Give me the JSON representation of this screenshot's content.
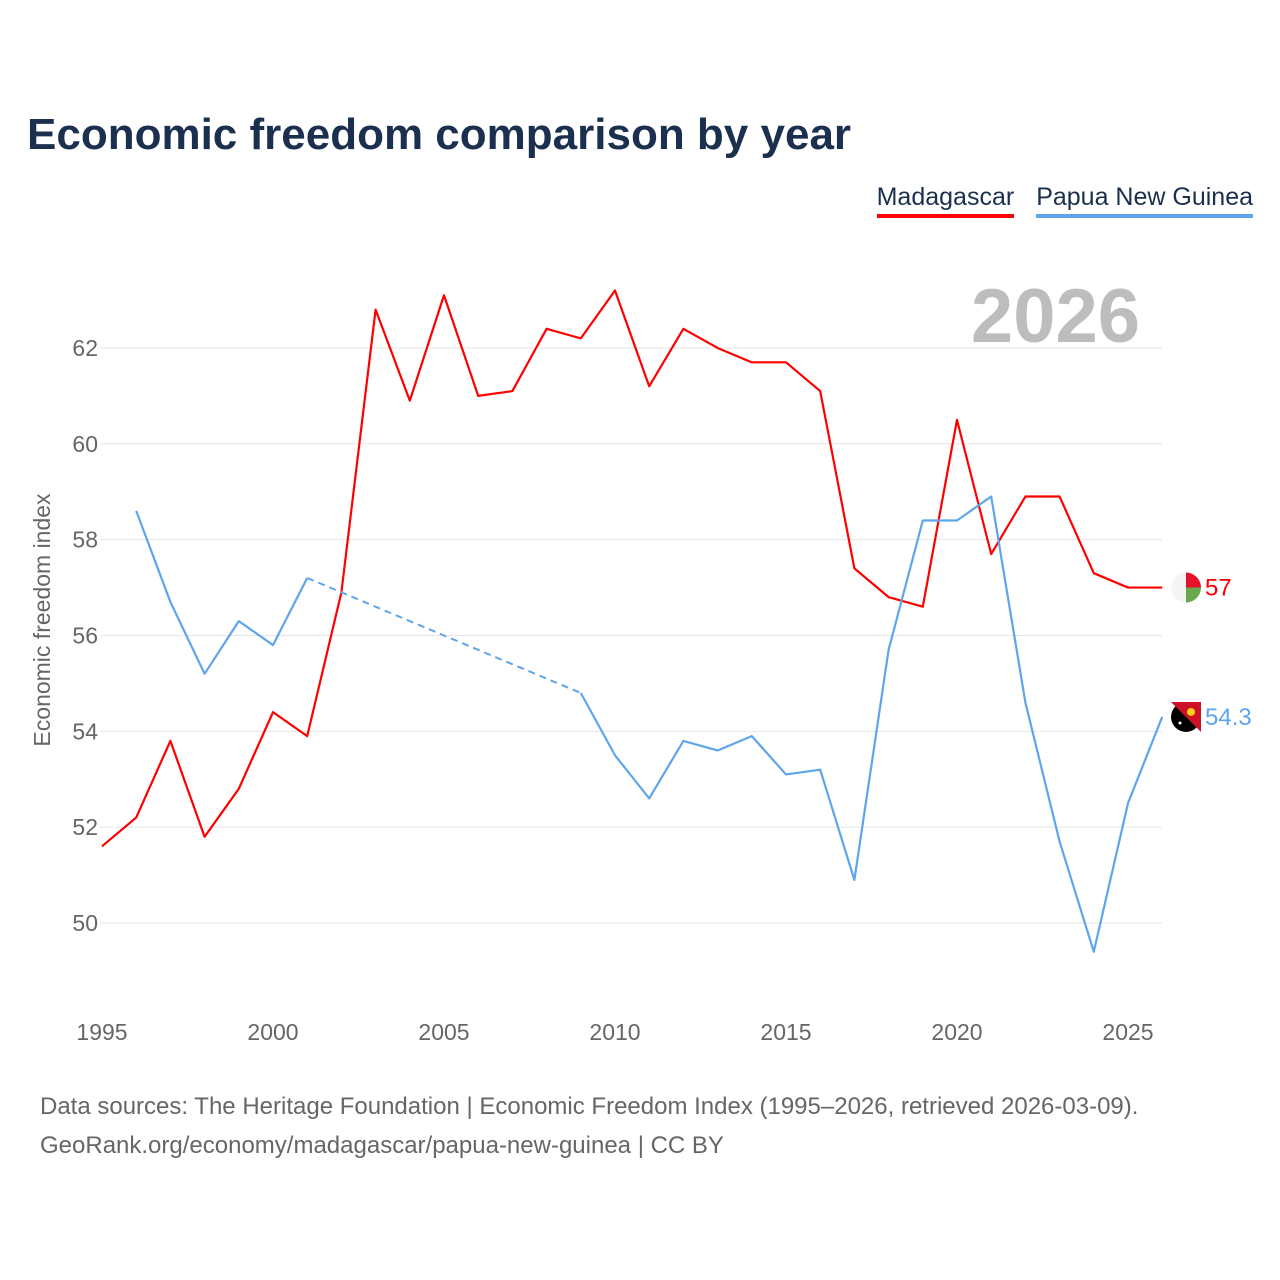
{
  "chart_data": {
    "type": "line",
    "title": "Economic freedom comparison by year",
    "ylabel": "Economic freedom index",
    "xlabel": "",
    "xlim": [
      1995,
      2026
    ],
    "ylim": [
      48.5,
      63.5
    ],
    "xticks": [
      1995,
      2000,
      2005,
      2010,
      2015,
      2020,
      2025
    ],
    "yticks": [
      50,
      52,
      54,
      56,
      58,
      60,
      62
    ],
    "grid": true,
    "legend_position": "top-right",
    "current_year_label": "2026",
    "series": [
      {
        "name": "Madagascar",
        "color": "#ff0000",
        "end_label": "57",
        "x": [
          1995,
          1996,
          1997,
          1998,
          1999,
          2000,
          2001,
          2002,
          2003,
          2004,
          2005,
          2006,
          2007,
          2008,
          2009,
          2010,
          2011,
          2012,
          2013,
          2014,
          2015,
          2016,
          2017,
          2018,
          2019,
          2020,
          2021,
          2022,
          2023,
          2024,
          2025,
          2026
        ],
        "values": [
          51.6,
          52.2,
          53.8,
          51.8,
          52.8,
          54.4,
          53.9,
          56.9,
          62.8,
          60.9,
          63.1,
          61.0,
          61.1,
          62.4,
          62.2,
          63.2,
          61.2,
          62.4,
          62.0,
          61.7,
          61.7,
          61.1,
          57.4,
          56.8,
          56.6,
          60.5,
          57.7,
          58.9,
          58.9,
          57.3,
          57.0,
          57.0
        ]
      },
      {
        "name": "Papua New Guinea",
        "color": "#5ea5ec",
        "end_label": "54.3",
        "x": [
          1996,
          1997,
          1998,
          1999,
          2000,
          2001,
          2009,
          2010,
          2011,
          2012,
          2013,
          2014,
          2015,
          2016,
          2017,
          2018,
          2019,
          2020,
          2021,
          2022,
          2023,
          2024,
          2025,
          2026
        ],
        "values": [
          58.6,
          56.7,
          55.2,
          56.3,
          55.8,
          57.2,
          54.8,
          53.5,
          52.6,
          53.8,
          53.6,
          53.9,
          53.1,
          53.2,
          50.9,
          55.7,
          58.4,
          58.4,
          58.9,
          54.6,
          51.7,
          49.4,
          52.5,
          54.3
        ],
        "gap": [
          2001,
          2009
        ]
      }
    ]
  },
  "footer": {
    "line1": "Data sources: The Heritage Foundation | Economic Freedom Index (1995–2026, retrieved 2026-03-09).",
    "line2": "GeoRank.org/economy/madagascar/papua-new-guinea | CC BY"
  }
}
